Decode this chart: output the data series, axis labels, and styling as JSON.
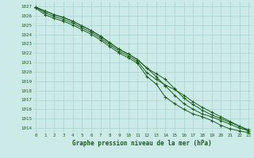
{
  "title": "Graphe pression niveau de la mer (hPa)",
  "background_color": "#cceae8",
  "grid_color": "#aad4d0",
  "line_color": "#1a5c1a",
  "x_ticks": [
    0,
    1,
    2,
    3,
    4,
    5,
    6,
    7,
    8,
    9,
    10,
    11,
    12,
    13,
    14,
    15,
    16,
    17,
    18,
    19,
    20,
    21,
    22,
    23
  ],
  "y_min": 1013.5,
  "y_max": 1027.5,
  "y_ticks": [
    1014,
    1015,
    1016,
    1017,
    1018,
    1019,
    1020,
    1021,
    1022,
    1023,
    1024,
    1025,
    1026,
    1027
  ],
  "series": [
    [
      1026.8,
      1026.1,
      1025.7,
      1025.4,
      1025.0,
      1024.5,
      1024.0,
      1023.4,
      1022.7,
      1022.0,
      1021.5,
      1020.9,
      1019.5,
      1018.7,
      1017.3,
      1016.6,
      1016.0,
      1015.5,
      1015.2,
      1014.8,
      1014.3,
      1013.9,
      1013.7,
      1013.5
    ],
    [
      1026.9,
      1026.3,
      1025.9,
      1025.6,
      1025.2,
      1024.7,
      1024.2,
      1023.6,
      1022.9,
      1022.2,
      1021.7,
      1021.1,
      1019.9,
      1019.2,
      1018.6,
      1018.1,
      1017.5,
      1016.8,
      1016.2,
      1015.7,
      1015.2,
      1014.7,
      1014.2,
      1013.7
    ],
    [
      1026.9,
      1026.5,
      1026.1,
      1025.8,
      1025.4,
      1024.9,
      1024.4,
      1023.8,
      1023.1,
      1022.4,
      1021.9,
      1021.3,
      1020.4,
      1019.8,
      1019.2,
      1018.2,
      1017.2,
      1016.5,
      1015.9,
      1015.4,
      1015.0,
      1014.6,
      1014.2,
      1013.8
    ],
    [
      1026.9,
      1026.5,
      1026.1,
      1025.8,
      1025.4,
      1024.9,
      1024.4,
      1023.8,
      1023.1,
      1022.4,
      1021.9,
      1021.3,
      1020.4,
      1019.5,
      1018.5,
      1017.5,
      1016.6,
      1016.0,
      1015.5,
      1015.2,
      1014.8,
      1014.4,
      1014.0,
      1013.7
    ]
  ]
}
